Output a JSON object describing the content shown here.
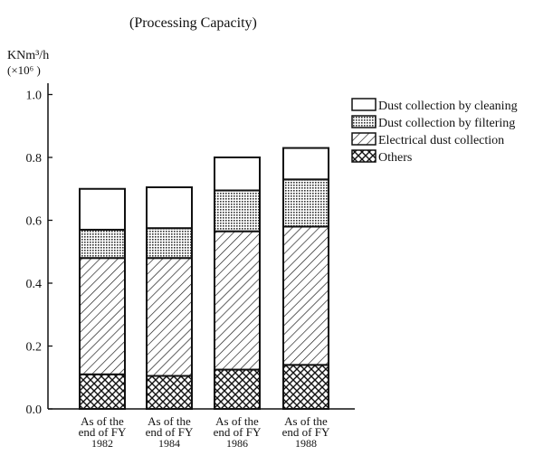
{
  "chart_data": {
    "type": "bar",
    "stacked": true,
    "title": "(Processing Capacity)",
    "ylabel": "KNm³/h",
    "ylabel_unit": "(×10⁶ )",
    "ylim": [
      0,
      1.0
    ],
    "yticks": [
      "0.0",
      "0.2",
      "0.4",
      "0.6",
      "0.8",
      "1.0"
    ],
    "ytick_values": [
      0,
      0.2,
      0.4,
      0.6,
      0.8,
      1.0
    ],
    "categories": [
      [
        "As of the",
        "end of FY",
        "1982"
      ],
      [
        "As of the",
        "end of FY",
        "1984"
      ],
      [
        "As of the",
        "end of FY",
        "1986"
      ],
      [
        "As of the",
        "end of FY",
        "1988"
      ]
    ],
    "series": [
      {
        "name": "Others",
        "pattern": "crosshatch",
        "values": [
          0.11,
          0.105,
          0.125,
          0.14
        ]
      },
      {
        "name": "Electrical dust collection",
        "pattern": "diagonal",
        "values": [
          0.37,
          0.375,
          0.44,
          0.44
        ]
      },
      {
        "name": "Dust collection by filtering",
        "pattern": "dots",
        "values": [
          0.09,
          0.095,
          0.13,
          0.15
        ]
      },
      {
        "name": "Dust collection by cleaning",
        "pattern": "blank",
        "values": [
          0.13,
          0.13,
          0.105,
          0.1
        ]
      }
    ],
    "legend": [
      "Dust collection by cleaning",
      "Dust collection by filtering",
      "Electrical dust collection",
      "Others"
    ],
    "legend_placement": "top-right",
    "grid": false
  }
}
